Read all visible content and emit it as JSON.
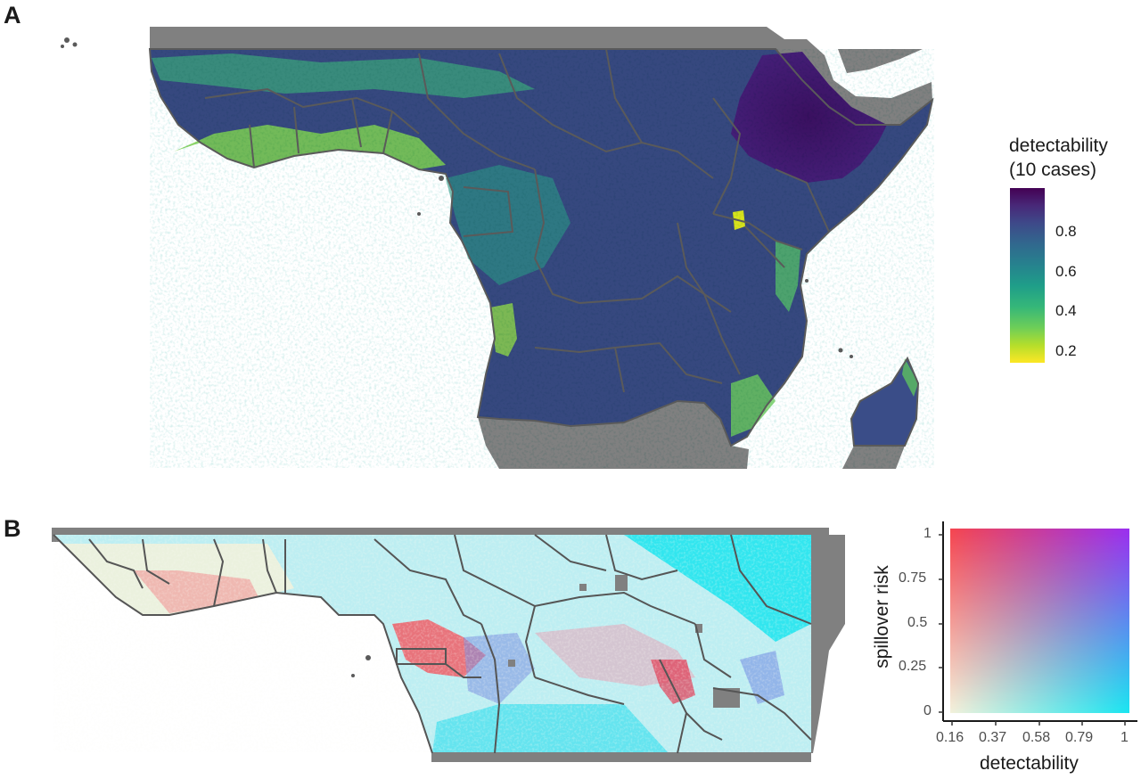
{
  "panels": {
    "a": {
      "letter": "A"
    },
    "b": {
      "letter": "B"
    }
  },
  "legend_a": {
    "title_line1": "detectability",
    "title_line2": "(10 cases)",
    "ticks": [
      "0.8",
      "0.6",
      "0.4",
      "0.2"
    ],
    "scale": "viridis (reversed, dark = high)"
  },
  "legend_b": {
    "x_title": "detectability",
    "y_title": "spillover risk",
    "x_ticks": [
      "0.16",
      "0.37",
      "0.58",
      "0.79",
      "1"
    ],
    "y_ticks": [
      "1",
      "0.75",
      "0.5",
      "0.25",
      "0"
    ]
  },
  "colors": {
    "land_outside": "#808080",
    "border": "#555555",
    "high_detectability": "#3b1f6b",
    "low_detectability": "#fde725",
    "bivariate_low_low": "#f1f3dc",
    "bivariate_high_detect": "#17e4f0",
    "bivariate_high_risk": "#f5454f",
    "bivariate_high_both": "#9c2fea"
  }
}
